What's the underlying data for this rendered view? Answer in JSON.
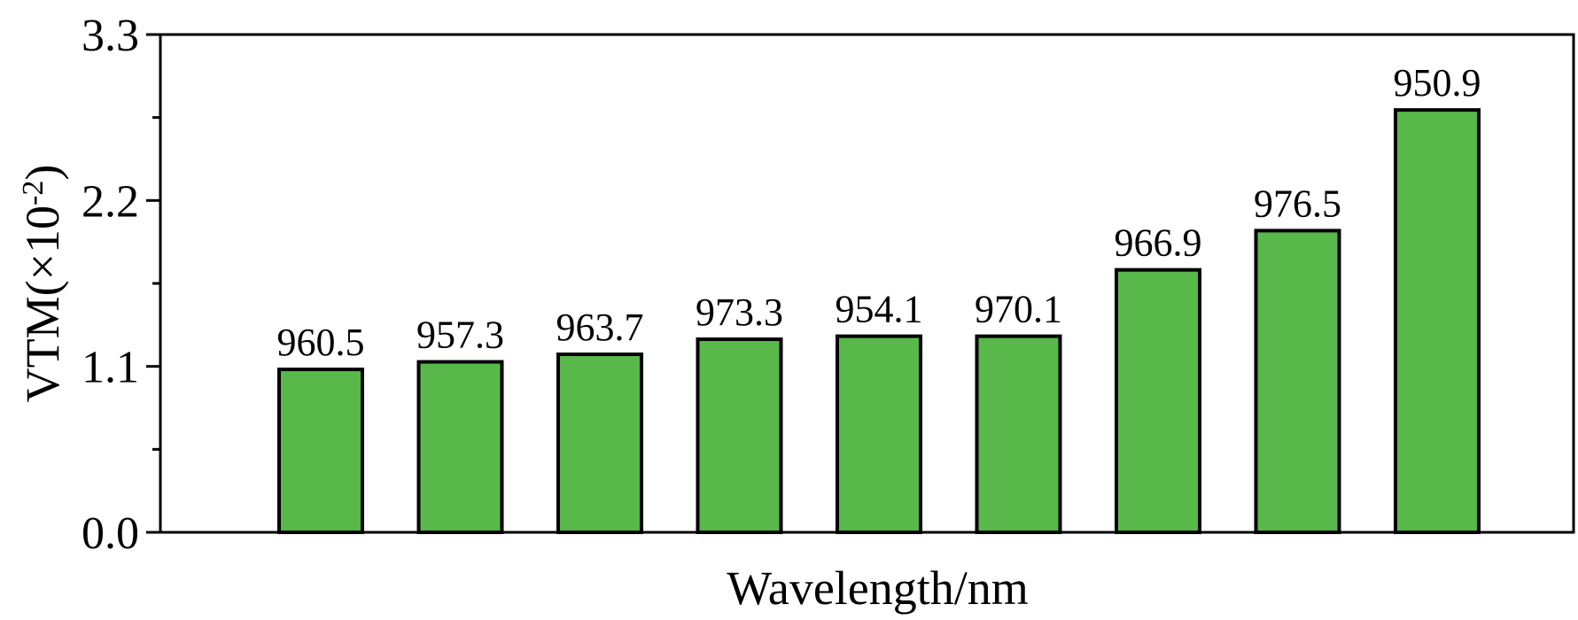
{
  "chart_data": {
    "type": "bar",
    "title": "",
    "xlabel": "Wavelength/nm",
    "ylabel": {
      "text": "VTM(×10",
      "sup": "-2",
      "close": ")"
    },
    "ylim": [
      0,
      3.3
    ],
    "yticks": [
      "0.0",
      "1.1",
      "2.2",
      "3.3"
    ],
    "minor_ticks": [
      0.55,
      1.65,
      2.75
    ],
    "grid": false,
    "legend": "none",
    "bar_color": "#58b94a",
    "categories": [
      "960.5",
      "957.3",
      "963.7",
      "973.3",
      "954.1",
      "970.1",
      "966.9",
      "976.5",
      "950.9"
    ],
    "values": [
      1.08,
      1.13,
      1.18,
      1.28,
      1.3,
      1.3,
      1.74,
      2.0,
      2.8
    ]
  }
}
